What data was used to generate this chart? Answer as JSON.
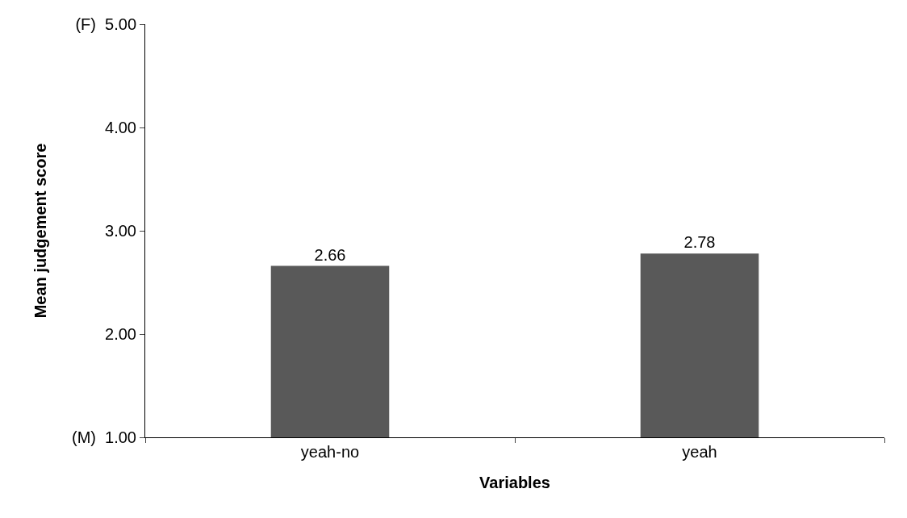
{
  "chart_data": {
    "type": "bar",
    "xlabel": "Variables",
    "ylabel": "Mean judgement score",
    "categories": [
      "yeah-no",
      "yeah"
    ],
    "values": [
      2.66,
      2.78
    ],
    "color": "#595959",
    "ylim": [
      1,
      5
    ],
    "yticks": [
      {
        "value": 1,
        "label": "(M)  1.00"
      },
      {
        "value": 2,
        "label": "2.00"
      },
      {
        "value": 3,
        "label": "3.00"
      },
      {
        "value": 4,
        "label": "4.00"
      },
      {
        "value": 5,
        "label": "(F)  5.00"
      }
    ],
    "data_labels": true
  }
}
